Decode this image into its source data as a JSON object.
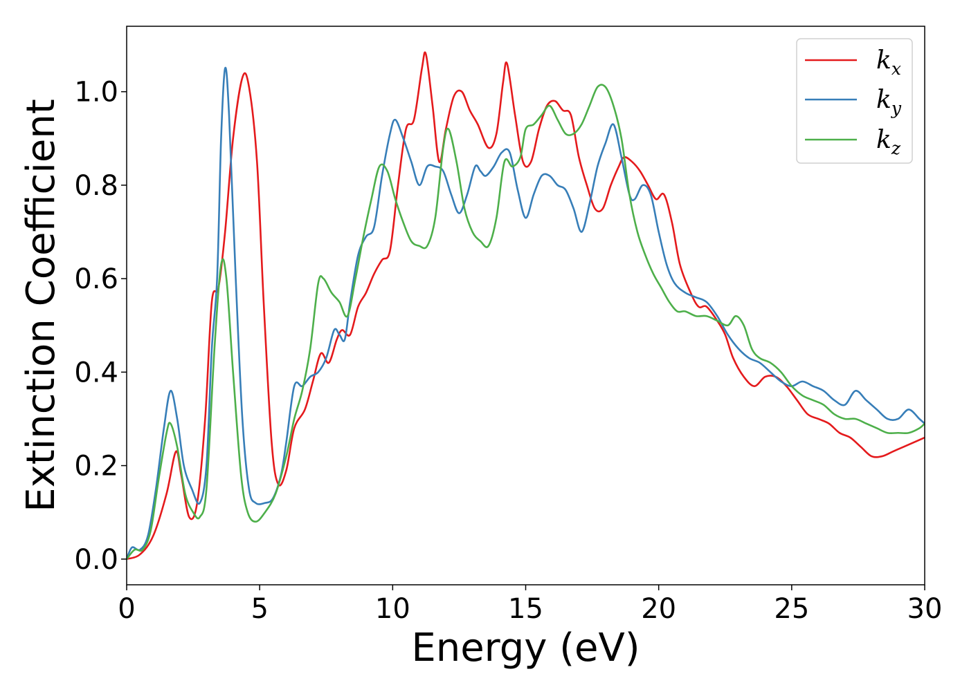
{
  "chart_data": {
    "type": "line",
    "title": "",
    "xlabel": "Energy (eV)",
    "ylabel": "Extinction Coefficient",
    "xlim": [
      0,
      30
    ],
    "ylim": [
      -0.055,
      1.14
    ],
    "x_ticks": [
      0,
      5,
      10,
      15,
      20,
      25,
      30
    ],
    "x_tick_labels": [
      "0",
      "5",
      "10",
      "15",
      "20",
      "25",
      "30"
    ],
    "y_ticks": [
      0.0,
      0.2,
      0.4,
      0.6,
      0.8,
      1.0
    ],
    "y_tick_labels": [
      "0.0",
      "0.2",
      "0.4",
      "0.6",
      "0.8",
      "1.0"
    ],
    "grid": false,
    "legend_position": "top-right",
    "series": [
      {
        "name": "k_x",
        "legend_base": "k",
        "legend_sub": "x",
        "color": "#e41a1c",
        "points": [
          [
            0,
            0.0
          ],
          [
            0.5,
            0.01
          ],
          [
            1.0,
            0.05
          ],
          [
            1.5,
            0.14
          ],
          [
            1.85,
            0.23
          ],
          [
            2.05,
            0.18
          ],
          [
            2.35,
            0.09
          ],
          [
            2.65,
            0.12
          ],
          [
            2.95,
            0.3
          ],
          [
            3.2,
            0.55
          ],
          [
            3.45,
            0.58
          ],
          [
            3.7,
            0.7
          ],
          [
            4.0,
            0.9
          ],
          [
            4.35,
            1.03
          ],
          [
            4.6,
            1.01
          ],
          [
            4.9,
            0.85
          ],
          [
            5.15,
            0.55
          ],
          [
            5.45,
            0.25
          ],
          [
            5.7,
            0.16
          ],
          [
            6.0,
            0.19
          ],
          [
            6.3,
            0.28
          ],
          [
            6.7,
            0.32
          ],
          [
            7.0,
            0.38
          ],
          [
            7.3,
            0.44
          ],
          [
            7.6,
            0.42
          ],
          [
            7.9,
            0.47
          ],
          [
            8.1,
            0.49
          ],
          [
            8.4,
            0.48
          ],
          [
            8.7,
            0.54
          ],
          [
            9.0,
            0.57
          ],
          [
            9.3,
            0.61
          ],
          [
            9.6,
            0.64
          ],
          [
            9.9,
            0.66
          ],
          [
            10.2,
            0.8
          ],
          [
            10.5,
            0.92
          ],
          [
            10.8,
            0.94
          ],
          [
            11.1,
            1.05
          ],
          [
            11.25,
            1.08
          ],
          [
            11.5,
            0.97
          ],
          [
            11.75,
            0.85
          ],
          [
            12.0,
            0.92
          ],
          [
            12.3,
            0.99
          ],
          [
            12.6,
            1.0
          ],
          [
            12.9,
            0.96
          ],
          [
            13.2,
            0.93
          ],
          [
            13.6,
            0.88
          ],
          [
            13.9,
            0.91
          ],
          [
            14.15,
            1.02
          ],
          [
            14.3,
            1.06
          ],
          [
            14.6,
            0.95
          ],
          [
            14.9,
            0.85
          ],
          [
            15.2,
            0.85
          ],
          [
            15.5,
            0.92
          ],
          [
            15.8,
            0.97
          ],
          [
            16.1,
            0.98
          ],
          [
            16.4,
            0.96
          ],
          [
            16.7,
            0.95
          ],
          [
            17.0,
            0.86
          ],
          [
            17.3,
            0.8
          ],
          [
            17.6,
            0.75
          ],
          [
            17.9,
            0.75
          ],
          [
            18.2,
            0.8
          ],
          [
            18.5,
            0.84
          ],
          [
            18.7,
            0.86
          ],
          [
            19.0,
            0.85
          ],
          [
            19.3,
            0.83
          ],
          [
            19.6,
            0.8
          ],
          [
            19.9,
            0.77
          ],
          [
            20.2,
            0.78
          ],
          [
            20.5,
            0.72
          ],
          [
            20.8,
            0.63
          ],
          [
            21.2,
            0.57
          ],
          [
            21.5,
            0.54
          ],
          [
            21.8,
            0.54
          ],
          [
            22.2,
            0.51
          ],
          [
            22.5,
            0.48
          ],
          [
            22.8,
            0.43
          ],
          [
            23.2,
            0.39
          ],
          [
            23.6,
            0.37
          ],
          [
            24.0,
            0.39
          ],
          [
            24.4,
            0.39
          ],
          [
            24.8,
            0.37
          ],
          [
            25.2,
            0.34
          ],
          [
            25.6,
            0.31
          ],
          [
            26.0,
            0.3
          ],
          [
            26.4,
            0.29
          ],
          [
            26.8,
            0.27
          ],
          [
            27.2,
            0.26
          ],
          [
            27.6,
            0.24
          ],
          [
            28.0,
            0.22
          ],
          [
            28.4,
            0.22
          ],
          [
            28.8,
            0.23
          ],
          [
            29.2,
            0.24
          ],
          [
            29.6,
            0.25
          ],
          [
            30.0,
            0.26
          ]
        ]
      },
      {
        "name": "k_y",
        "legend_base": "k",
        "legend_sub": "y",
        "color": "#377eb8",
        "points": [
          [
            0,
            0.0
          ],
          [
            0.2,
            0.025
          ],
          [
            0.5,
            0.02
          ],
          [
            0.8,
            0.05
          ],
          [
            1.1,
            0.15
          ],
          [
            1.4,
            0.28
          ],
          [
            1.65,
            0.36
          ],
          [
            1.9,
            0.3
          ],
          [
            2.15,
            0.2
          ],
          [
            2.45,
            0.15
          ],
          [
            2.75,
            0.12
          ],
          [
            3.0,
            0.2
          ],
          [
            3.2,
            0.45
          ],
          [
            3.4,
            0.6
          ],
          [
            3.55,
            0.9
          ],
          [
            3.7,
            1.05
          ],
          [
            3.85,
            0.95
          ],
          [
            4.1,
            0.6
          ],
          [
            4.35,
            0.3
          ],
          [
            4.6,
            0.15
          ],
          [
            4.85,
            0.12
          ],
          [
            5.2,
            0.12
          ],
          [
            5.5,
            0.13
          ],
          [
            5.8,
            0.18
          ],
          [
            6.0,
            0.25
          ],
          [
            6.3,
            0.37
          ],
          [
            6.6,
            0.37
          ],
          [
            6.9,
            0.39
          ],
          [
            7.2,
            0.4
          ],
          [
            7.5,
            0.43
          ],
          [
            7.8,
            0.49
          ],
          [
            8.0,
            0.48
          ],
          [
            8.2,
            0.47
          ],
          [
            8.4,
            0.55
          ],
          [
            8.7,
            0.65
          ],
          [
            9.0,
            0.69
          ],
          [
            9.3,
            0.71
          ],
          [
            9.6,
            0.82
          ],
          [
            9.9,
            0.91
          ],
          [
            10.1,
            0.94
          ],
          [
            10.4,
            0.9
          ],
          [
            10.7,
            0.85
          ],
          [
            11.0,
            0.8
          ],
          [
            11.3,
            0.84
          ],
          [
            11.6,
            0.84
          ],
          [
            11.9,
            0.83
          ],
          [
            12.2,
            0.78
          ],
          [
            12.5,
            0.74
          ],
          [
            12.8,
            0.78
          ],
          [
            13.1,
            0.84
          ],
          [
            13.3,
            0.83
          ],
          [
            13.5,
            0.82
          ],
          [
            13.8,
            0.84
          ],
          [
            14.1,
            0.87
          ],
          [
            14.4,
            0.87
          ],
          [
            14.7,
            0.79
          ],
          [
            15.0,
            0.73
          ],
          [
            15.3,
            0.78
          ],
          [
            15.6,
            0.82
          ],
          [
            15.9,
            0.82
          ],
          [
            16.2,
            0.8
          ],
          [
            16.5,
            0.79
          ],
          [
            16.8,
            0.75
          ],
          [
            17.1,
            0.7
          ],
          [
            17.4,
            0.76
          ],
          [
            17.7,
            0.84
          ],
          [
            18.0,
            0.89
          ],
          [
            18.3,
            0.93
          ],
          [
            18.6,
            0.86
          ],
          [
            18.9,
            0.78
          ],
          [
            19.1,
            0.77
          ],
          [
            19.4,
            0.8
          ],
          [
            19.7,
            0.78
          ],
          [
            20.0,
            0.7
          ],
          [
            20.3,
            0.63
          ],
          [
            20.6,
            0.59
          ],
          [
            21.0,
            0.57
          ],
          [
            21.4,
            0.56
          ],
          [
            21.8,
            0.55
          ],
          [
            22.2,
            0.52
          ],
          [
            22.6,
            0.48
          ],
          [
            23.0,
            0.45
          ],
          [
            23.4,
            0.43
          ],
          [
            23.8,
            0.42
          ],
          [
            24.2,
            0.4
          ],
          [
            24.6,
            0.38
          ],
          [
            25.0,
            0.37
          ],
          [
            25.4,
            0.38
          ],
          [
            25.8,
            0.37
          ],
          [
            26.2,
            0.36
          ],
          [
            26.6,
            0.34
          ],
          [
            27.0,
            0.33
          ],
          [
            27.4,
            0.36
          ],
          [
            27.8,
            0.34
          ],
          [
            28.2,
            0.32
          ],
          [
            28.6,
            0.3
          ],
          [
            29.0,
            0.3
          ],
          [
            29.4,
            0.32
          ],
          [
            29.8,
            0.3
          ],
          [
            30.0,
            0.29
          ]
        ]
      },
      {
        "name": "k_z",
        "legend_base": "k",
        "legend_sub": "z",
        "color": "#4daf4a",
        "points": [
          [
            0,
            0.0
          ],
          [
            0.3,
            0.02
          ],
          [
            0.6,
            0.02
          ],
          [
            0.9,
            0.06
          ],
          [
            1.2,
            0.17
          ],
          [
            1.5,
            0.27
          ],
          [
            1.65,
            0.29
          ],
          [
            1.9,
            0.24
          ],
          [
            2.2,
            0.14
          ],
          [
            2.5,
            0.1
          ],
          [
            2.75,
            0.09
          ],
          [
            3.0,
            0.15
          ],
          [
            3.3,
            0.45
          ],
          [
            3.55,
            0.63
          ],
          [
            3.75,
            0.6
          ],
          [
            4.0,
            0.4
          ],
          [
            4.3,
            0.18
          ],
          [
            4.55,
            0.1
          ],
          [
            4.85,
            0.08
          ],
          [
            5.2,
            0.1
          ],
          [
            5.6,
            0.14
          ],
          [
            6.0,
            0.22
          ],
          [
            6.3,
            0.3
          ],
          [
            6.6,
            0.36
          ],
          [
            6.9,
            0.45
          ],
          [
            7.2,
            0.59
          ],
          [
            7.4,
            0.6
          ],
          [
            7.7,
            0.57
          ],
          [
            8.0,
            0.55
          ],
          [
            8.3,
            0.52
          ],
          [
            8.6,
            0.6
          ],
          [
            8.9,
            0.69
          ],
          [
            9.2,
            0.77
          ],
          [
            9.5,
            0.84
          ],
          [
            9.8,
            0.83
          ],
          [
            10.1,
            0.77
          ],
          [
            10.4,
            0.72
          ],
          [
            10.7,
            0.68
          ],
          [
            11.0,
            0.67
          ],
          [
            11.3,
            0.67
          ],
          [
            11.6,
            0.73
          ],
          [
            11.9,
            0.88
          ],
          [
            12.1,
            0.92
          ],
          [
            12.4,
            0.85
          ],
          [
            12.7,
            0.75
          ],
          [
            13.0,
            0.7
          ],
          [
            13.3,
            0.68
          ],
          [
            13.6,
            0.67
          ],
          [
            13.9,
            0.73
          ],
          [
            14.2,
            0.85
          ],
          [
            14.5,
            0.84
          ],
          [
            14.8,
            0.86
          ],
          [
            15.0,
            0.92
          ],
          [
            15.3,
            0.93
          ],
          [
            15.6,
            0.95
          ],
          [
            15.9,
            0.97
          ],
          [
            16.2,
            0.94
          ],
          [
            16.5,
            0.91
          ],
          [
            16.8,
            0.91
          ],
          [
            17.1,
            0.93
          ],
          [
            17.4,
            0.97
          ],
          [
            17.7,
            1.01
          ],
          [
            18.0,
            1.01
          ],
          [
            18.3,
            0.97
          ],
          [
            18.6,
            0.9
          ],
          [
            18.9,
            0.78
          ],
          [
            19.2,
            0.7
          ],
          [
            19.5,
            0.65
          ],
          [
            19.8,
            0.61
          ],
          [
            20.1,
            0.58
          ],
          [
            20.4,
            0.55
          ],
          [
            20.7,
            0.53
          ],
          [
            21.0,
            0.53
          ],
          [
            21.4,
            0.52
          ],
          [
            21.8,
            0.52
          ],
          [
            22.2,
            0.51
          ],
          [
            22.6,
            0.5
          ],
          [
            22.9,
            0.52
          ],
          [
            23.2,
            0.5
          ],
          [
            23.5,
            0.45
          ],
          [
            23.8,
            0.43
          ],
          [
            24.2,
            0.42
          ],
          [
            24.6,
            0.4
          ],
          [
            25.0,
            0.37
          ],
          [
            25.4,
            0.35
          ],
          [
            25.8,
            0.34
          ],
          [
            26.2,
            0.33
          ],
          [
            26.6,
            0.31
          ],
          [
            27.0,
            0.3
          ],
          [
            27.4,
            0.3
          ],
          [
            27.8,
            0.29
          ],
          [
            28.2,
            0.28
          ],
          [
            28.6,
            0.27
          ],
          [
            29.0,
            0.27
          ],
          [
            29.4,
            0.27
          ],
          [
            29.8,
            0.28
          ],
          [
            30.0,
            0.29
          ]
        ]
      }
    ]
  }
}
